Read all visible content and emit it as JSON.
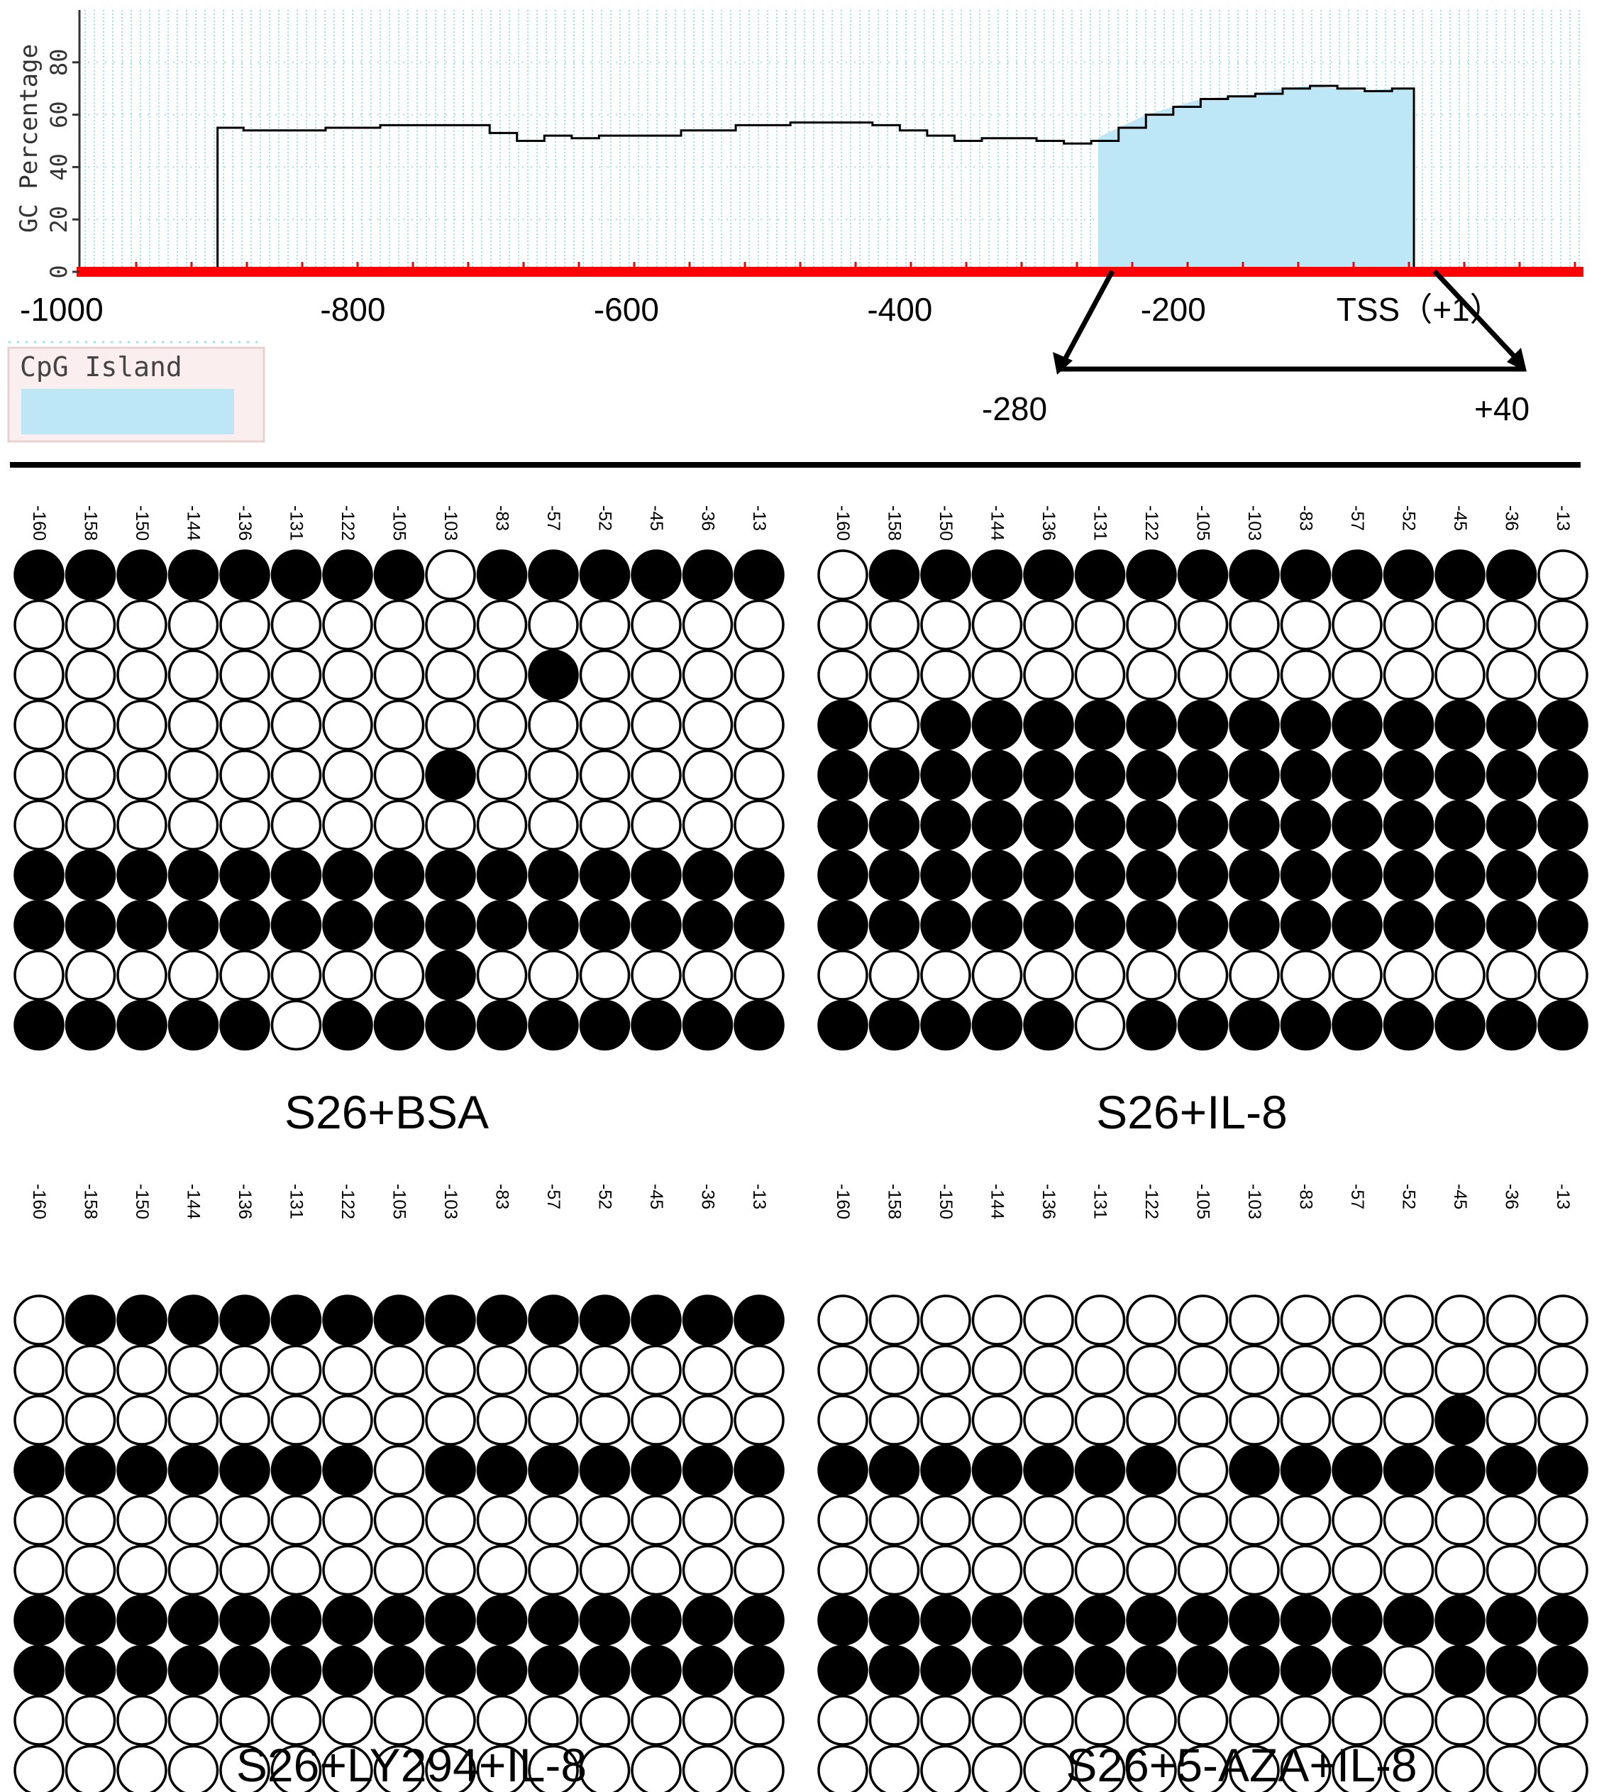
{
  "chart_data": [
    {
      "type": "area",
      "ylabel": "GC Percentage",
      "xlim": [
        -1000,
        100
      ],
      "ylim": [
        0,
        100
      ],
      "y_ticks": [
        "0",
        "20",
        "40",
        "60",
        "80"
      ],
      "x_ticks": [
        {
          "value": -1000,
          "label": "-1000"
        },
        {
          "value": -800,
          "label": "-800"
        },
        {
          "value": -600,
          "label": "-600"
        },
        {
          "value": -400,
          "label": "-400"
        },
        {
          "value": -200,
          "label": "-200"
        },
        {
          "value": -20,
          "label": "TSS（+1）"
        }
      ],
      "grid": true,
      "gc_profile": {
        "x": [
          -1000,
          -900,
          -899,
          -880,
          -850,
          -820,
          -780,
          -720,
          -700,
          -680,
          -660,
          -640,
          -620,
          -600,
          -560,
          -520,
          -480,
          -440,
          -420,
          -400,
          -380,
          -360,
          -340,
          -320,
          -300,
          -280,
          -260,
          -240,
          -220,
          -200,
          -180,
          -160,
          -140,
          -120,
          -100,
          -80,
          -60,
          -40,
          -25,
          -24,
          -10,
          10,
          30,
          60,
          90,
          100
        ],
        "y": [
          0,
          0,
          55,
          54,
          54,
          55,
          56,
          56,
          53,
          50,
          52,
          51,
          52,
          52,
          54,
          56,
          57,
          57,
          56,
          54,
          52,
          50,
          51,
          51,
          50,
          49,
          50,
          55,
          60,
          63,
          66,
          67,
          68,
          70,
          71,
          70,
          69,
          70,
          70,
          0,
          0,
          0,
          0,
          0,
          0,
          0
        ]
      },
      "cpg_island": {
        "legend_label": "CpG Island",
        "start": -255,
        "end": -15,
        "color": "#bde6f6"
      },
      "region": {
        "start_label": "-280",
        "end_label": "+40"
      },
      "colors": {
        "baseline": "#ff0000",
        "grid": "#9fe3e6",
        "line": "#000000"
      }
    },
    {
      "type": "heatmap",
      "description_free": true,
      "cpg_sites": [
        "-160",
        "-158",
        "-150",
        "-144",
        "-136",
        "-131",
        "-122",
        "-105",
        "-103",
        "-83",
        "-57",
        "-52",
        "-45",
        "-36",
        "-13"
      ],
      "legend": {
        "1": "filled circle",
        "0": "open circle"
      },
      "panels": [
        {
          "title": "S26+BSA",
          "rows": [
            [
              1,
              1,
              1,
              1,
              1,
              1,
              1,
              1,
              0,
              1,
              1,
              1,
              1,
              1,
              1
            ],
            [
              0,
              0,
              0,
              0,
              0,
              0,
              0,
              0,
              0,
              0,
              0,
              0,
              0,
              0,
              0
            ],
            [
              0,
              0,
              0,
              0,
              0,
              0,
              0,
              0,
              0,
              0,
              1,
              0,
              0,
              0,
              0
            ],
            [
              0,
              0,
              0,
              0,
              0,
              0,
              0,
              0,
              0,
              0,
              0,
              0,
              0,
              0,
              0
            ],
            [
              0,
              0,
              0,
              0,
              0,
              0,
              0,
              0,
              1,
              0,
              0,
              0,
              0,
              0,
              0
            ],
            [
              0,
              0,
              0,
              0,
              0,
              0,
              0,
              0,
              0,
              0,
              0,
              0,
              0,
              0,
              0
            ],
            [
              1,
              1,
              1,
              1,
              1,
              1,
              1,
              1,
              1,
              1,
              1,
              1,
              1,
              1,
              1
            ],
            [
              1,
              1,
              1,
              1,
              1,
              1,
              1,
              1,
              1,
              1,
              1,
              1,
              1,
              1,
              1
            ],
            [
              0,
              0,
              0,
              0,
              0,
              0,
              0,
              0,
              1,
              0,
              0,
              0,
              0,
              0,
              0
            ],
            [
              1,
              1,
              1,
              1,
              1,
              0,
              1,
              1,
              1,
              1,
              1,
              1,
              1,
              1,
              1
            ]
          ]
        },
        {
          "title": "S26+IL-8",
          "rows": [
            [
              0,
              1,
              1,
              1,
              1,
              1,
              1,
              1,
              1,
              1,
              1,
              1,
              1,
              1,
              0
            ],
            [
              0,
              0,
              0,
              0,
              0,
              0,
              0,
              0,
              0,
              0,
              0,
              0,
              0,
              0,
              0
            ],
            [
              0,
              0,
              0,
              0,
              0,
              0,
              0,
              0,
              0,
              0,
              0,
              0,
              0,
              0,
              0
            ],
            [
              1,
              0,
              1,
              1,
              1,
              1,
              1,
              1,
              1,
              1,
              1,
              1,
              1,
              1,
              1
            ],
            [
              1,
              1,
              1,
              1,
              1,
              1,
              1,
              1,
              1,
              1,
              1,
              1,
              1,
              1,
              1
            ],
            [
              1,
              1,
              1,
              1,
              1,
              1,
              1,
              1,
              1,
              1,
              1,
              1,
              1,
              1,
              1
            ],
            [
              1,
              1,
              1,
              1,
              1,
              1,
              1,
              1,
              1,
              1,
              1,
              1,
              1,
              1,
              1
            ],
            [
              1,
              1,
              1,
              1,
              1,
              1,
              1,
              1,
              1,
              1,
              1,
              1,
              1,
              1,
              1
            ],
            [
              0,
              0,
              0,
              0,
              0,
              0,
              0,
              0,
              0,
              0,
              0,
              0,
              0,
              0,
              0
            ],
            [
              1,
              1,
              1,
              1,
              1,
              0,
              1,
              1,
              1,
              1,
              1,
              1,
              1,
              1,
              1
            ]
          ]
        },
        {
          "title": "S26+LY294+IL-8",
          "rows": [
            [
              0,
              1,
              1,
              1,
              1,
              1,
              1,
              1,
              1,
              1,
              1,
              1,
              1,
              1,
              1
            ],
            [
              0,
              0,
              0,
              0,
              0,
              0,
              0,
              0,
              0,
              0,
              0,
              0,
              0,
              0,
              0
            ],
            [
              0,
              0,
              0,
              0,
              0,
              0,
              0,
              0,
              0,
              0,
              0,
              0,
              0,
              0,
              0
            ],
            [
              1,
              1,
              1,
              1,
              1,
              1,
              1,
              0,
              1,
              1,
              1,
              1,
              1,
              1,
              1
            ],
            [
              0,
              0,
              0,
              0,
              0,
              0,
              0,
              0,
              0,
              0,
              0,
              0,
              0,
              0,
              0
            ],
            [
              0,
              0,
              0,
              0,
              0,
              0,
              0,
              0,
              0,
              0,
              0,
              0,
              0,
              0,
              0
            ],
            [
              1,
              1,
              1,
              1,
              1,
              1,
              1,
              1,
              1,
              1,
              1,
              1,
              1,
              1,
              1
            ],
            [
              1,
              1,
              1,
              1,
              1,
              1,
              1,
              1,
              1,
              1,
              1,
              1,
              1,
              1,
              1
            ],
            [
              0,
              0,
              0,
              0,
              0,
              0,
              0,
              0,
              0,
              0,
              0,
              0,
              0,
              0,
              0
            ],
            [
              0,
              0,
              0,
              0,
              0,
              0,
              0,
              0,
              0,
              0,
              0,
              0,
              0,
              0,
              0
            ]
          ]
        },
        {
          "title": "S26+5-AZA+IL-8",
          "rows": [
            [
              0,
              0,
              0,
              0,
              0,
              0,
              0,
              0,
              0,
              0,
              0,
              0,
              0,
              0,
              0
            ],
            [
              0,
              0,
              0,
              0,
              0,
              0,
              0,
              0,
              0,
              0,
              0,
              0,
              0,
              0,
              0
            ],
            [
              0,
              0,
              0,
              0,
              0,
              0,
              0,
              0,
              0,
              0,
              0,
              0,
              1,
              0,
              0
            ],
            [
              1,
              1,
              1,
              1,
              1,
              1,
              1,
              0,
              1,
              1,
              1,
              1,
              1,
              1,
              1
            ],
            [
              0,
              0,
              0,
              0,
              0,
              0,
              0,
              0,
              0,
              0,
              0,
              0,
              0,
              0,
              0
            ],
            [
              0,
              0,
              0,
              0,
              0,
              0,
              0,
              0,
              0,
              0,
              0,
              0,
              0,
              0,
              0
            ],
            [
              1,
              1,
              1,
              1,
              1,
              1,
              1,
              1,
              1,
              1,
              1,
              1,
              1,
              1,
              1
            ],
            [
              1,
              1,
              1,
              1,
              1,
              1,
              1,
              1,
              1,
              1,
              1,
              0,
              1,
              1,
              1
            ],
            [
              0,
              0,
              0,
              0,
              0,
              0,
              0,
              0,
              0,
              0,
              0,
              0,
              0,
              0,
              0
            ],
            [
              0,
              0,
              0,
              0,
              0,
              0,
              0,
              0,
              0,
              0,
              0,
              0,
              0,
              0,
              0
            ]
          ]
        }
      ]
    }
  ]
}
